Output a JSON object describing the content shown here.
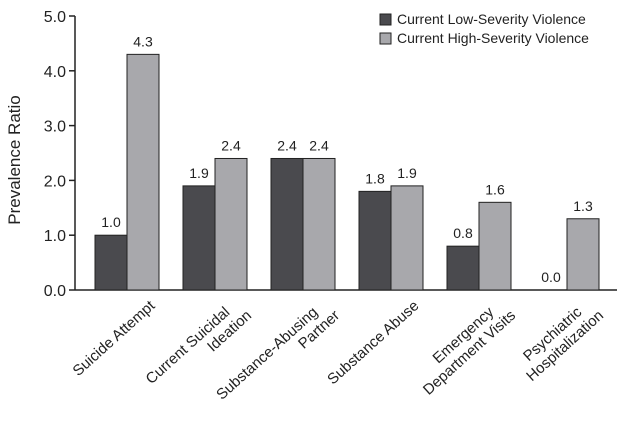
{
  "chart_data": {
    "type": "bar",
    "title": "",
    "xlabel": "",
    "ylabel": "Prevalence Ratio",
    "ylim": [
      0,
      5.0
    ],
    "yticks": [
      "0.0",
      "1.0",
      "2.0",
      "3.0",
      "4.0",
      "5.0"
    ],
    "grid": false,
    "legend_position": "top-right",
    "categories": [
      [
        "Suicide Attempt"
      ],
      [
        "Current Suicidal",
        "Ideation"
      ],
      [
        "Substance-Abusing",
        "Partner"
      ],
      [
        "Substance Abuse"
      ],
      [
        "Emergency",
        "Department Visits"
      ],
      [
        "Psychiatric",
        "Hospitalization"
      ]
    ],
    "series": [
      {
        "name": "Current Low-Severity Violence",
        "color": "#4a4a4e",
        "values": [
          1.0,
          1.9,
          2.4,
          1.8,
          0.8,
          0.0
        ],
        "labels": [
          "1.0",
          "1.9",
          "2.4",
          "1.8",
          "0.8",
          "0.0"
        ]
      },
      {
        "name": "Current High-Severity Violence",
        "color": "#a8a8ac",
        "values": [
          4.3,
          2.4,
          2.4,
          1.9,
          1.6,
          1.3
        ],
        "labels": [
          "4.3",
          "2.4",
          "2.4",
          "1.9",
          "1.6",
          "1.3"
        ]
      }
    ]
  }
}
